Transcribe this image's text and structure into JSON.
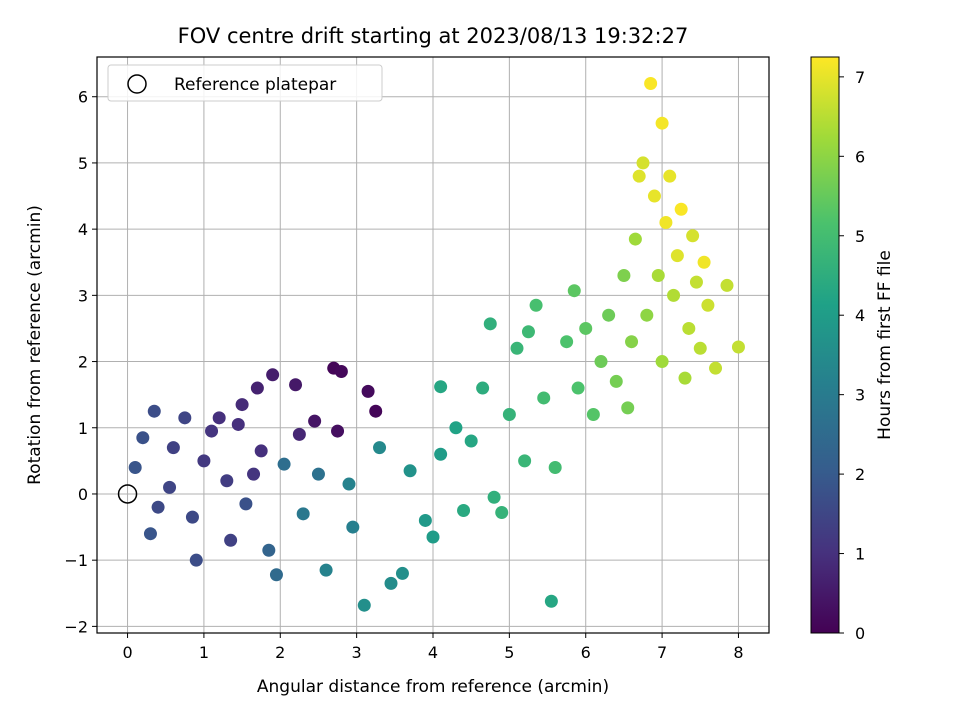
{
  "chart_data": {
    "type": "scatter",
    "title": "FOV centre drift starting at 2023/08/13 19:32:27",
    "xlabel": "Angular distance from reference (arcmin)",
    "ylabel": "Rotation from reference (arcmin)",
    "xlim": [
      -0.4,
      8.4
    ],
    "ylim": [
      -2.1,
      6.6
    ],
    "x_ticks": [
      0,
      1,
      2,
      3,
      4,
      5,
      6,
      7,
      8
    ],
    "y_ticks": [
      -2,
      -1,
      0,
      1,
      2,
      3,
      4,
      5,
      6
    ],
    "grid": true,
    "legend": {
      "entries": [
        {
          "label": "Reference platepar",
          "marker": "open-circle"
        }
      ],
      "placement": "upper-left"
    },
    "reference_point": {
      "x": 0,
      "y": 0
    },
    "colorbar": {
      "label": "Hours from first FF file",
      "range": [
        0,
        7.25
      ],
      "ticks": [
        0,
        1,
        2,
        3,
        4,
        5,
        6,
        7
      ],
      "colormap": "viridis"
    },
    "points": [
      {
        "x": 0.1,
        "y": 0.4,
        "c": 1.9
      },
      {
        "x": 0.2,
        "y": 0.85,
        "c": 1.8
      },
      {
        "x": 0.35,
        "y": 1.25,
        "c": 1.7
      },
      {
        "x": 0.3,
        "y": -0.6,
        "c": 1.9
      },
      {
        "x": 0.4,
        "y": -0.2,
        "c": 1.6
      },
      {
        "x": 0.55,
        "y": 0.1,
        "c": 1.5
      },
      {
        "x": 0.6,
        "y": 0.7,
        "c": 1.4
      },
      {
        "x": 0.75,
        "y": 1.15,
        "c": 1.5
      },
      {
        "x": 0.85,
        "y": -0.35,
        "c": 1.6
      },
      {
        "x": 0.9,
        "y": -1.0,
        "c": 1.7
      },
      {
        "x": 1.0,
        "y": 0.5,
        "c": 1.2
      },
      {
        "x": 1.1,
        "y": 0.95,
        "c": 1.1
      },
      {
        "x": 1.2,
        "y": 1.15,
        "c": 1.0
      },
      {
        "x": 1.3,
        "y": 0.2,
        "c": 1.3
      },
      {
        "x": 1.35,
        "y": -0.7,
        "c": 1.4
      },
      {
        "x": 1.45,
        "y": 1.05,
        "c": 1.0
      },
      {
        "x": 1.5,
        "y": 1.35,
        "c": 0.9
      },
      {
        "x": 1.55,
        "y": -0.15,
        "c": 1.8
      },
      {
        "x": 1.65,
        "y": 0.3,
        "c": 1.1
      },
      {
        "x": 1.7,
        "y": 1.6,
        "c": 0.7
      },
      {
        "x": 1.75,
        "y": 0.65,
        "c": 1.0
      },
      {
        "x": 1.85,
        "y": -0.85,
        "c": 2.3
      },
      {
        "x": 1.9,
        "y": 1.8,
        "c": 0.6
      },
      {
        "x": 1.95,
        "y": -1.22,
        "c": 2.5
      },
      {
        "x": 2.05,
        "y": 0.45,
        "c": 2.6
      },
      {
        "x": 2.2,
        "y": 1.65,
        "c": 0.5
      },
      {
        "x": 2.25,
        "y": 0.9,
        "c": 0.8
      },
      {
        "x": 2.3,
        "y": -0.3,
        "c": 2.9
      },
      {
        "x": 2.45,
        "y": 1.1,
        "c": 0.4
      },
      {
        "x": 2.5,
        "y": 0.3,
        "c": 2.7
      },
      {
        "x": 2.6,
        "y": -1.15,
        "c": 3.2
      },
      {
        "x": 2.7,
        "y": 1.9,
        "c": 0.1
      },
      {
        "x": 2.75,
        "y": 0.95,
        "c": 0.3
      },
      {
        "x": 2.8,
        "y": 1.85,
        "c": 0.15
      },
      {
        "x": 2.9,
        "y": 0.15,
        "c": 3.2
      },
      {
        "x": 2.95,
        "y": -0.5,
        "c": 3.1
      },
      {
        "x": 3.1,
        "y": -1.68,
        "c": 3.6
      },
      {
        "x": 3.15,
        "y": 1.55,
        "c": 0.2
      },
      {
        "x": 3.25,
        "y": 1.25,
        "c": 0.1
      },
      {
        "x": 3.3,
        "y": 0.7,
        "c": 3.4
      },
      {
        "x": 3.45,
        "y": -1.35,
        "c": 3.5
      },
      {
        "x": 3.6,
        "y": -1.2,
        "c": 3.6
      },
      {
        "x": 3.7,
        "y": 0.35,
        "c": 3.7
      },
      {
        "x": 3.9,
        "y": -0.4,
        "c": 3.9
      },
      {
        "x": 4.0,
        "y": -0.65,
        "c": 4.0
      },
      {
        "x": 4.1,
        "y": 0.6,
        "c": 4.0
      },
      {
        "x": 4.1,
        "y": 1.62,
        "c": 4.3
      },
      {
        "x": 4.3,
        "y": 1.0,
        "c": 4.2
      },
      {
        "x": 4.4,
        "y": -0.25,
        "c": 4.4
      },
      {
        "x": 4.5,
        "y": 0.8,
        "c": 4.3
      },
      {
        "x": 4.65,
        "y": 1.6,
        "c": 4.5
      },
      {
        "x": 4.75,
        "y": 2.57,
        "c": 4.6
      },
      {
        "x": 4.8,
        "y": -0.05,
        "c": 4.6
      },
      {
        "x": 4.9,
        "y": -0.28,
        "c": 4.7
      },
      {
        "x": 5.0,
        "y": 1.2,
        "c": 4.7
      },
      {
        "x": 5.1,
        "y": 2.2,
        "c": 4.8
      },
      {
        "x": 5.2,
        "y": 0.5,
        "c": 4.8
      },
      {
        "x": 5.25,
        "y": 2.45,
        "c": 4.9
      },
      {
        "x": 5.35,
        "y": 2.85,
        "c": 5.1
      },
      {
        "x": 5.45,
        "y": 1.45,
        "c": 5.0
      },
      {
        "x": 5.55,
        "y": -1.62,
        "c": 4.3
      },
      {
        "x": 5.6,
        "y": 0.4,
        "c": 5.0
      },
      {
        "x": 5.75,
        "y": 2.3,
        "c": 5.2
      },
      {
        "x": 5.85,
        "y": 3.07,
        "c": 5.4
      },
      {
        "x": 5.9,
        "y": 1.6,
        "c": 5.2
      },
      {
        "x": 6.0,
        "y": 2.5,
        "c": 5.4
      },
      {
        "x": 6.1,
        "y": 1.2,
        "c": 5.3
      },
      {
        "x": 6.2,
        "y": 2.0,
        "c": 5.6
      },
      {
        "x": 6.3,
        "y": 2.7,
        "c": 5.6
      },
      {
        "x": 6.4,
        "y": 1.7,
        "c": 5.7
      },
      {
        "x": 6.5,
        "y": 3.3,
        "c": 5.8
      },
      {
        "x": 6.55,
        "y": 1.3,
        "c": 5.7
      },
      {
        "x": 6.6,
        "y": 2.3,
        "c": 5.9
      },
      {
        "x": 6.65,
        "y": 3.85,
        "c": 6.2
      },
      {
        "x": 6.7,
        "y": 4.8,
        "c": 6.9
      },
      {
        "x": 6.75,
        "y": 5.0,
        "c": 6.8
      },
      {
        "x": 6.8,
        "y": 2.7,
        "c": 6.0
      },
      {
        "x": 6.85,
        "y": 6.2,
        "c": 7.2
      },
      {
        "x": 6.9,
        "y": 4.5,
        "c": 7.0
      },
      {
        "x": 6.95,
        "y": 3.3,
        "c": 6.3
      },
      {
        "x": 7.0,
        "y": 5.6,
        "c": 7.15
      },
      {
        "x": 7.0,
        "y": 2.0,
        "c": 6.2
      },
      {
        "x": 7.05,
        "y": 4.1,
        "c": 7.1
      },
      {
        "x": 7.1,
        "y": 4.8,
        "c": 7.0
      },
      {
        "x": 7.15,
        "y": 3.0,
        "c": 6.4
      },
      {
        "x": 7.2,
        "y": 3.6,
        "c": 6.9
      },
      {
        "x": 7.25,
        "y": 4.3,
        "c": 7.2
      },
      {
        "x": 7.3,
        "y": 1.75,
        "c": 6.3
      },
      {
        "x": 7.35,
        "y": 2.5,
        "c": 6.5
      },
      {
        "x": 7.4,
        "y": 3.9,
        "c": 6.8
      },
      {
        "x": 7.45,
        "y": 3.2,
        "c": 6.6
      },
      {
        "x": 7.5,
        "y": 2.2,
        "c": 6.5
      },
      {
        "x": 7.55,
        "y": 3.5,
        "c": 7.1
      },
      {
        "x": 7.6,
        "y": 2.85,
        "c": 6.7
      },
      {
        "x": 7.7,
        "y": 1.9,
        "c": 6.6
      },
      {
        "x": 7.85,
        "y": 3.15,
        "c": 6.6
      },
      {
        "x": 8.0,
        "y": 2.22,
        "c": 6.6
      }
    ]
  }
}
